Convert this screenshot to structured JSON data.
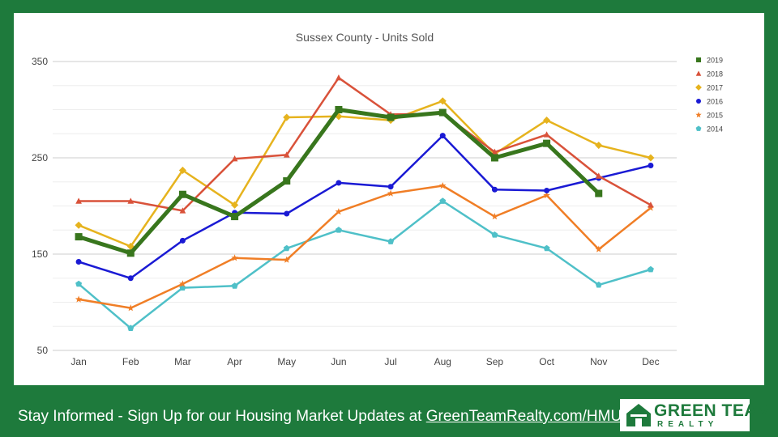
{
  "chart_data": {
    "type": "line",
    "title": "Sussex County - Units Sold",
    "xlabel": "",
    "ylabel": "",
    "categories": [
      "Jan",
      "Feb",
      "Mar",
      "Apr",
      "May",
      "Jun",
      "Jul",
      "Aug",
      "Sep",
      "Oct",
      "Nov",
      "Dec"
    ],
    "ylim": [
      50,
      350
    ],
    "yticks": [
      50,
      150,
      250,
      350
    ],
    "grid": true,
    "legend_position": "right",
    "series": [
      {
        "name": "2019",
        "color": "#38761d",
        "marker": "square",
        "values": [
          168,
          151,
          212,
          189,
          226,
          300,
          292,
          297,
          250,
          265,
          213,
          null
        ]
      },
      {
        "name": "2018",
        "color": "#d9523a",
        "marker": "triangle",
        "values": [
          205,
          205,
          195,
          249,
          253,
          333,
          295,
          296,
          256,
          274,
          231,
          201
        ]
      },
      {
        "name": "2017",
        "color": "#e6b31e",
        "marker": "diamond",
        "values": [
          180,
          158,
          237,
          201,
          292,
          293,
          289,
          309,
          254,
          289,
          263,
          250
        ]
      },
      {
        "name": "2016",
        "color": "#1a1ad4",
        "marker": "circle",
        "values": [
          142,
          125,
          164,
          193,
          192,
          224,
          220,
          273,
          217,
          216,
          229,
          242
        ]
      },
      {
        "name": "2015",
        "color": "#f07e26",
        "marker": "star",
        "values": [
          103,
          94,
          119,
          146,
          144,
          194,
          213,
          221,
          189,
          211,
          155,
          198
        ]
      },
      {
        "name": "2014",
        "color": "#4fc0c8",
        "marker": "pentagon",
        "values": [
          119,
          73,
          115,
          117,
          156,
          175,
          163,
          205,
          170,
          156,
          118,
          134
        ]
      }
    ]
  },
  "footer": {
    "text": "Stay Informed - Sign Up for our Housing Market Updates at ",
    "link": "GreenTeamRealty.com/HMU"
  },
  "logo": {
    "main": "GREEN TEAM",
    "sub": "REALTY"
  },
  "colors": {
    "background": "#1e7a3c",
    "card": "#ffffff"
  }
}
